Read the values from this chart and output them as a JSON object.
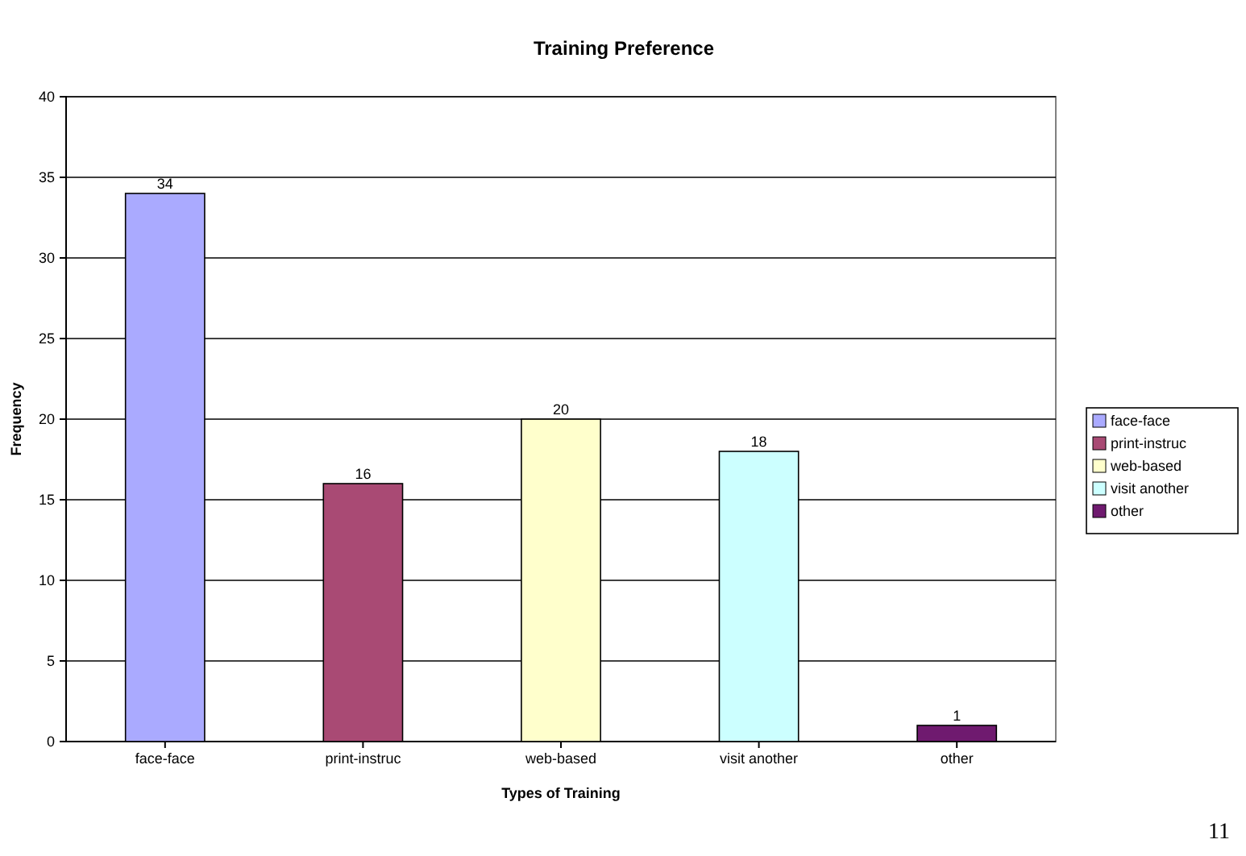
{
  "chart_data": {
    "type": "bar",
    "title": "Training Preference",
    "xlabel": "Types of Training",
    "ylabel": "Frequency",
    "categories": [
      "face-face",
      "print-instruc",
      "web-based",
      "visit another",
      "other"
    ],
    "series": [
      {
        "name": "face-face",
        "color": "#aaaaff",
        "values": [
          34,
          null,
          null,
          null,
          null
        ]
      },
      {
        "name": "print-instruc",
        "color": "#a94a74",
        "values": [
          null,
          16,
          null,
          null,
          null
        ]
      },
      {
        "name": "web-based",
        "color": "#ffffcc",
        "values": [
          null,
          null,
          20,
          null,
          null
        ]
      },
      {
        "name": "visit another",
        "color": "#ccffff",
        "values": [
          null,
          null,
          null,
          18,
          null
        ]
      },
      {
        "name": "other",
        "color": "#6f1a6f",
        "values": [
          null,
          null,
          null,
          null,
          1
        ]
      }
    ],
    "ylim": [
      0,
      40
    ],
    "yticks": [
      0,
      5,
      10,
      15,
      20,
      25,
      30,
      35,
      40
    ],
    "grid": "y",
    "legend": "right",
    "data_labels": true,
    "annotations": [
      "11"
    ]
  }
}
